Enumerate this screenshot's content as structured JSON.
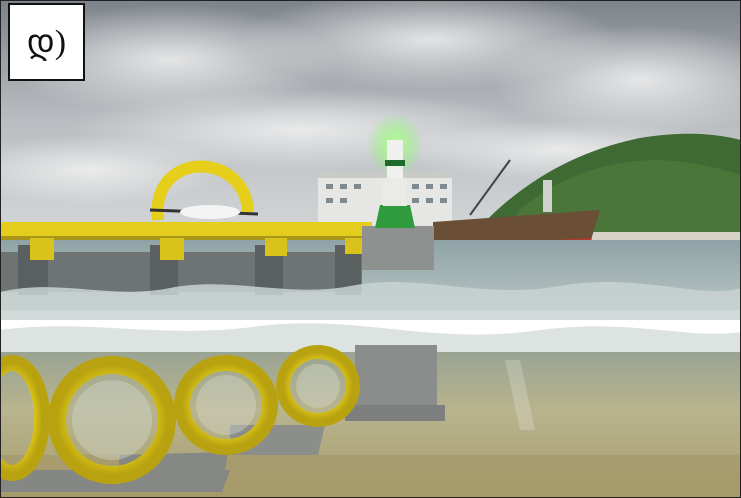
{
  "panel": {
    "label": "დ)"
  },
  "scene": {
    "description_tags": [
      "sky-clouds",
      "green-hill",
      "cargo-ship",
      "navigation-beacon",
      "breakwater-pier",
      "tidal-turbines",
      "underwater-seabed"
    ],
    "colors": {
      "sky_top": "#8c9298",
      "sky_mid": "#c9cdd0",
      "hill_green": "#3f6a33",
      "water_surface": "#9eb2b4",
      "underwater": "#b9b38a",
      "seabed": "#a89c6a",
      "turbine_yellow": "#e8d21a",
      "concrete": "#8d8f8e",
      "ship_hull": "#6a4e36",
      "beacon_green": "#2f9b3d",
      "beacon_glow": "#8cff70"
    }
  }
}
